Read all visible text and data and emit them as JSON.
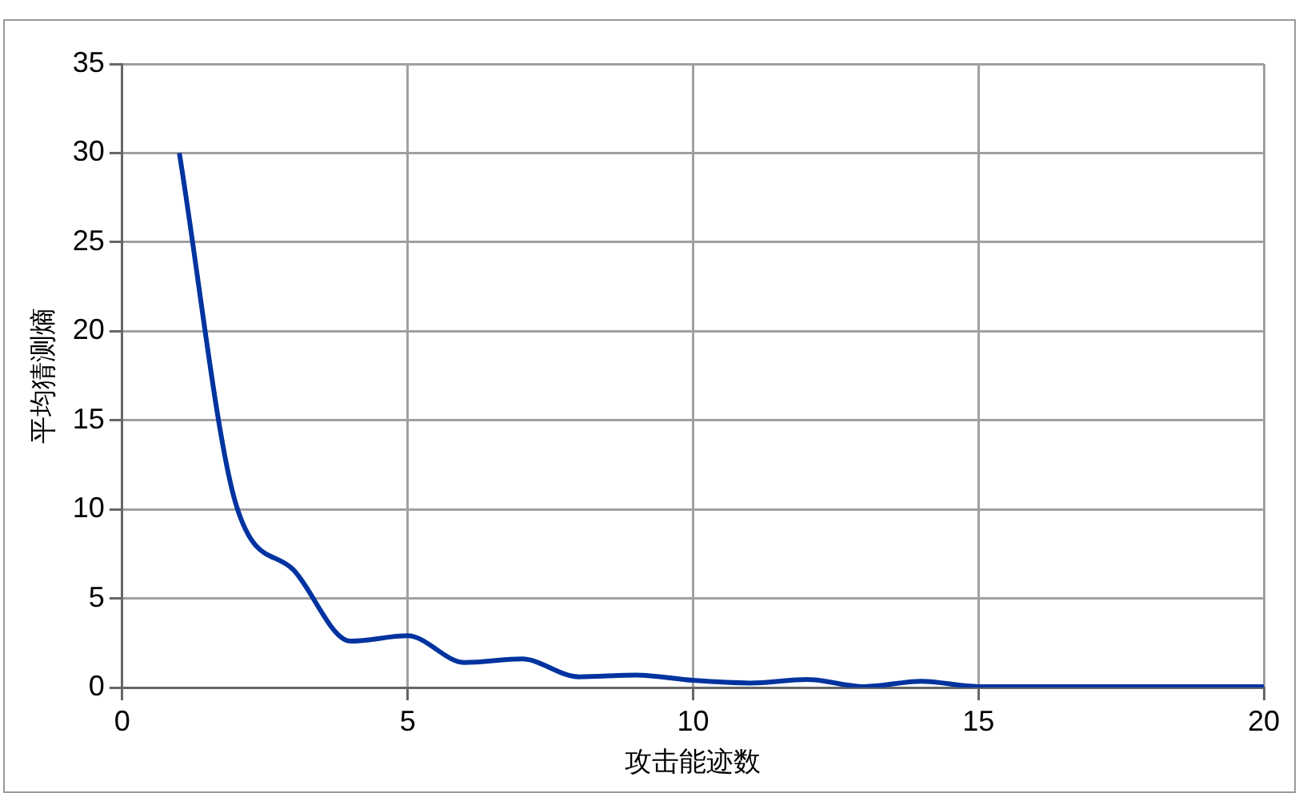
{
  "chart_data": {
    "type": "line",
    "xlabel": "攻击能迹数",
    "ylabel": "平均猜测熵",
    "x": [
      1,
      2,
      3,
      4,
      5,
      6,
      7,
      8,
      9,
      10,
      11,
      12,
      13,
      14,
      15,
      16,
      17,
      18,
      19,
      20
    ],
    "series": [
      {
        "color": "#0033a0",
        "values": [
          30,
          10.2,
          6.6,
          2.6,
          2.9,
          1.4,
          1.6,
          0.6,
          0.7,
          0.4,
          0.25,
          0.45,
          0.05,
          0.35,
          0.05,
          0.05,
          0.05,
          0.05,
          0.05,
          0.05
        ]
      }
    ],
    "xlim": [
      0,
      20
    ],
    "xticks": [
      0,
      5,
      10,
      15,
      20
    ],
    "ylim": [
      0,
      35
    ],
    "yticks": [
      0,
      5,
      10,
      15,
      20,
      25,
      30,
      35
    ],
    "grid": true,
    "legend": false,
    "marker": "none",
    "line_style": "solid"
  }
}
